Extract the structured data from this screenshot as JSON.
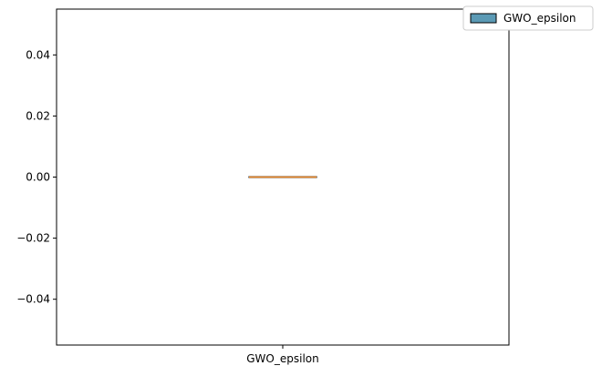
{
  "chart_data": {
    "type": "box",
    "title": "",
    "xlabel": "",
    "ylabel": "",
    "categories": [
      "GWO_epsilon"
    ],
    "series": [
      {
        "name": "GWO_epsilon",
        "whisker_low": 0.0,
        "q1": 0.0,
        "median": 0.0,
        "q3": 0.0,
        "whisker_high": 0.0
      }
    ],
    "ylim": [
      -0.055,
      0.055
    ],
    "yticks": [
      -0.04,
      -0.02,
      0.0,
      0.02,
      0.04
    ],
    "ytick_labels": [
      "−0.04",
      "−0.02",
      "0.00",
      "0.02",
      "0.04"
    ],
    "grid": false,
    "legend": {
      "position": "upper-right-outside",
      "entries": [
        {
          "label": "GWO_epsilon",
          "color": "#5b9ab5"
        }
      ]
    },
    "colors": {
      "box_fill": "#5b9ab5",
      "median_line": "#f28e2b",
      "edge": "#000000"
    }
  }
}
